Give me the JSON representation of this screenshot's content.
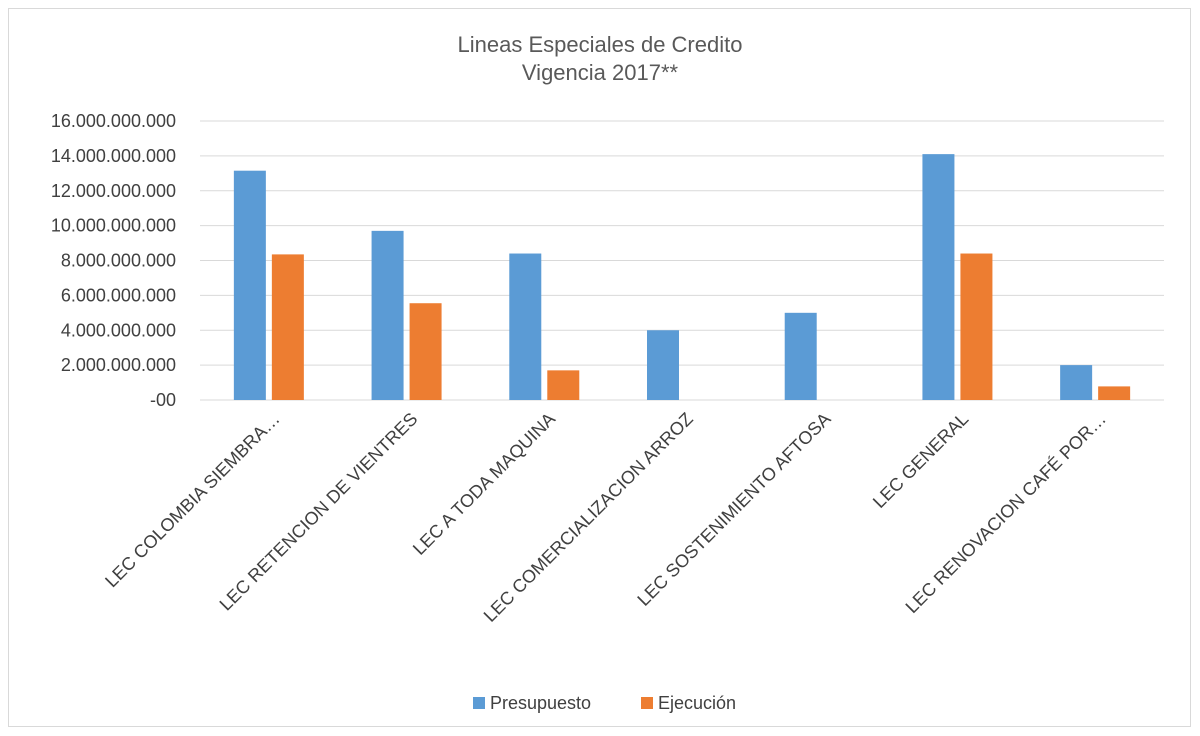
{
  "chart_data": {
    "type": "bar",
    "title_lines": [
      "Lineas Especiales de Credito",
      "Vigencia 2017**"
    ],
    "categories": [
      "LEC COLOMBIA SIEMBRA…",
      "LEC RETENCION DE VIENTRES",
      "LEC A TODA MAQUINA",
      "LEC COMERCIALIZACION ARROZ",
      "LEC SOSTENIMIENTO AFTOSA",
      "LEC GENERAL",
      "LEC RENOVACION CAFÉ POR…"
    ],
    "series": [
      {
        "name": "Presupuesto",
        "color": "#5b9bd5",
        "values": [
          13150000000,
          9700000000,
          8400000000,
          4000000000,
          5000000000,
          14100000000,
          2000000000
        ]
      },
      {
        "name": "Ejecución",
        "color": "#ed7d31",
        "values": [
          8350000000,
          5550000000,
          1700000000,
          0,
          0,
          8400000000,
          780000000
        ]
      }
    ],
    "y_ticks": [
      0,
      2000000000,
      4000000000,
      6000000000,
      8000000000,
      10000000000,
      12000000000,
      14000000000,
      16000000000
    ],
    "y_tick_labels": [
      "-00",
      "2.000.000.000",
      "4.000.000.000",
      "6.000.000.000",
      "8.000.000.000",
      "10.000.000.000",
      "12.000.000.000",
      "14.000.000.000",
      "16.000.000.000"
    ],
    "ylim": [
      0,
      16000000000
    ],
    "grid": true,
    "legend_position": "bottom",
    "gridline_color": "#d9d9d9"
  }
}
